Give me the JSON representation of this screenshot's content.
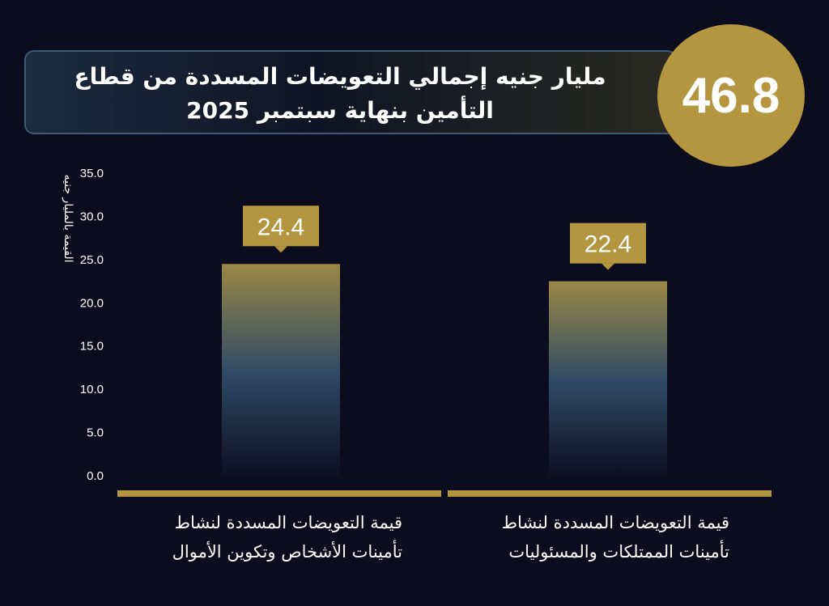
{
  "header": {
    "headline": 46.8,
    "title": "مليار جنيه إجمالي التعويضات المسددة من قطاع التأمين بنهاية سبتمبر 2025"
  },
  "chart_data": {
    "type": "bar",
    "y_label": "القيمة بالمليار جنيه",
    "categories": [
      "قيمة التعويضات المسددة لنشاط تأمينات الأشخاص وتكوين الأموال",
      "قيمة التعويضات المسددة لنشاط تأمينات الممتلكات والمسئوليات"
    ],
    "values": [
      24.4,
      22.4
    ],
    "color": "#b3963f",
    "ylim": [
      0,
      35
    ],
    "yticks": [
      {
        "value": 0,
        "label": "0.0"
      },
      {
        "value": 5,
        "label": "5.0"
      },
      {
        "value": 10,
        "label": "10.0"
      },
      {
        "value": 15,
        "label": "15.0"
      },
      {
        "value": 20,
        "label": "20.0"
      },
      {
        "value": 25,
        "label": "25.0"
      },
      {
        "value": 30,
        "label": "30.0"
      },
      {
        "value": 35,
        "label": "35.0"
      }
    ]
  }
}
